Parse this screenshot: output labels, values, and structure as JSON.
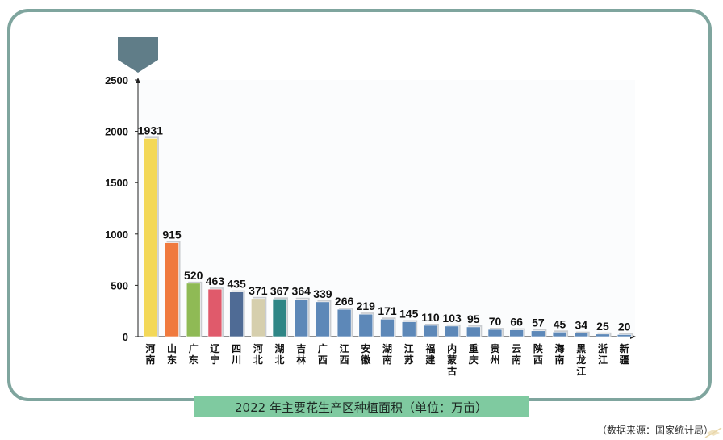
{
  "chart_data": {
    "type": "bar",
    "title": "2022 年主要花生产区种植面积（单位：万亩）",
    "categories": [
      "河南",
      "山东",
      "广东",
      "辽宁",
      "四川",
      "河北",
      "湖北",
      "吉林",
      "广西",
      "江西",
      "安徽",
      "湖南",
      "江苏",
      "福建",
      "内蒙古",
      "重庆",
      "贵州",
      "云南",
      "陕西",
      "海南",
      "黑龙江",
      "浙江",
      "新疆"
    ],
    "values": [
      1931,
      915,
      520,
      463,
      435,
      371,
      367,
      364,
      339,
      266,
      219,
      171,
      145,
      110,
      103,
      95,
      70,
      66,
      57,
      45,
      34,
      25,
      20
    ],
    "value_labels": [
      "1931",
      "915",
      "520",
      "463",
      "435",
      "371",
      "367",
      "364",
      "339",
      "266",
      "219",
      "171",
      "145",
      "110",
      "103",
      "95",
      "70",
      "66",
      "57",
      "45",
      "34",
      "25",
      "20"
    ],
    "colors": [
      "#f3d858",
      "#f07a3e",
      "#8fba55",
      "#e05a6b",
      "#4f6b95",
      "#d6cfad",
      "#2f8686",
      "#5d88b8",
      "#5d88b8",
      "#5d88b8",
      "#5d88b8",
      "#5d88b8",
      "#5d88b8",
      "#5d88b8",
      "#5d88b8",
      "#5d88b8",
      "#5d88b8",
      "#5d88b8",
      "#5d88b8",
      "#5d88b8",
      "#5d88b8",
      "#5d88b8",
      "#5d88b8"
    ],
    "ylim": [
      0,
      2500
    ],
    "yticks": [
      "0",
      "500",
      "1000",
      "1500",
      "2000",
      "2500"
    ],
    "ytick_values": [
      0,
      500,
      1000,
      1500,
      2000,
      2500
    ],
    "xlabel": "",
    "ylabel": ""
  },
  "caption": "2022 年主要花生产区种植面积（单位：万亩）",
  "source": "（数据来源：国家统计局）",
  "colors": {
    "frame": "#7fa59e",
    "caption_bg": "#7fcaa0",
    "marker": "#607d88"
  }
}
